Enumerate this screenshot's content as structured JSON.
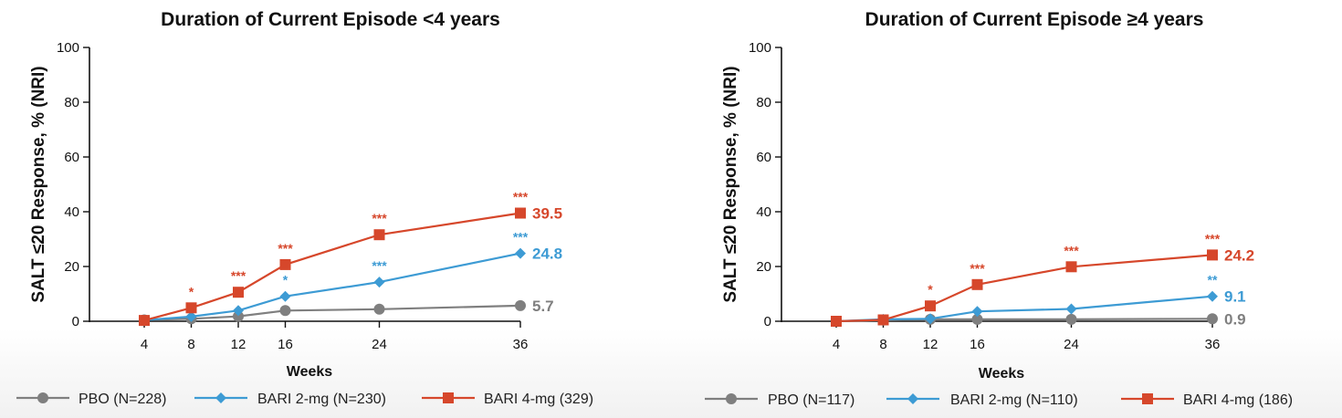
{
  "colors": {
    "pbo": "#7f7f7f",
    "bari2": "#3d9bd4",
    "bari4": "#d6472b",
    "axis": "#111111"
  },
  "chart_data": [
    {
      "type": "line",
      "title": "Duration of Current Episode <4 years",
      "xlabel": "Weeks",
      "ylabel": "SALT ≤20 Response, % (NRI)",
      "x": [
        4,
        8,
        12,
        16,
        24,
        36
      ],
      "xticks": [
        "4",
        "8",
        "12",
        "16",
        "24",
        "36"
      ],
      "yticks": [
        "0",
        "20",
        "40",
        "60",
        "80",
        "100"
      ],
      "ylim": [
        0,
        100
      ],
      "grid": false,
      "series": [
        {
          "name": "PBO (N=228)",
          "marker": "circle",
          "color": "#7f7f7f",
          "values": [
            0.5,
            0.9,
            1.8,
            3.9,
            4.4,
            5.7
          ],
          "end_label": "5.7",
          "significance": [
            "",
            "",
            "",
            "",
            "",
            ""
          ]
        },
        {
          "name": "BARI 2-mg (N=230)",
          "marker": "diamond",
          "color": "#3d9bd4",
          "values": [
            0.4,
            1.7,
            3.9,
            9.1,
            14.3,
            24.8
          ],
          "end_label": "24.8",
          "significance": [
            "",
            "",
            "",
            "*",
            "***",
            "***"
          ]
        },
        {
          "name": "BARI 4-mg (329)",
          "marker": "square",
          "color": "#d6472b",
          "values": [
            0.3,
            4.9,
            10.6,
            20.7,
            31.6,
            39.5
          ],
          "end_label": "39.5",
          "significance": [
            "",
            "*",
            "***",
            "***",
            "***",
            "***"
          ]
        }
      ],
      "legend_position": "bottom"
    },
    {
      "type": "line",
      "title": "Duration of Current Episode ≥4 years",
      "xlabel": "Weeks",
      "ylabel": "SALT ≤20 Response, % (NRI)",
      "x": [
        4,
        8,
        12,
        16,
        24,
        36
      ],
      "xticks": [
        "4",
        "8",
        "12",
        "16",
        "24",
        "36"
      ],
      "yticks": [
        "0",
        "20",
        "40",
        "60",
        "80",
        "100"
      ],
      "ylim": [
        0,
        100
      ],
      "grid": false,
      "series": [
        {
          "name": "PBO (N=117)",
          "marker": "circle",
          "color": "#7f7f7f",
          "values": [
            0.0,
            0.4,
            0.7,
            0.7,
            0.7,
            0.9
          ],
          "end_label": "0.9",
          "significance": [
            "",
            "",
            "",
            "",
            "",
            ""
          ]
        },
        {
          "name": "BARI 2-mg (N=110)",
          "marker": "diamond",
          "color": "#3d9bd4",
          "values": [
            0.0,
            0.7,
            0.9,
            3.6,
            4.5,
            9.1
          ],
          "end_label": "9.1",
          "significance": [
            "",
            "",
            "",
            "",
            "",
            "**"
          ]
        },
        {
          "name": "BARI 4-mg (186)",
          "marker": "square",
          "color": "#d6472b",
          "values": [
            0.0,
            0.5,
            5.6,
            13.4,
            19.9,
            24.2
          ],
          "end_label": "24.2",
          "significance": [
            "",
            "",
            "*",
            "***",
            "***",
            "***"
          ]
        }
      ],
      "legend_position": "bottom"
    }
  ]
}
